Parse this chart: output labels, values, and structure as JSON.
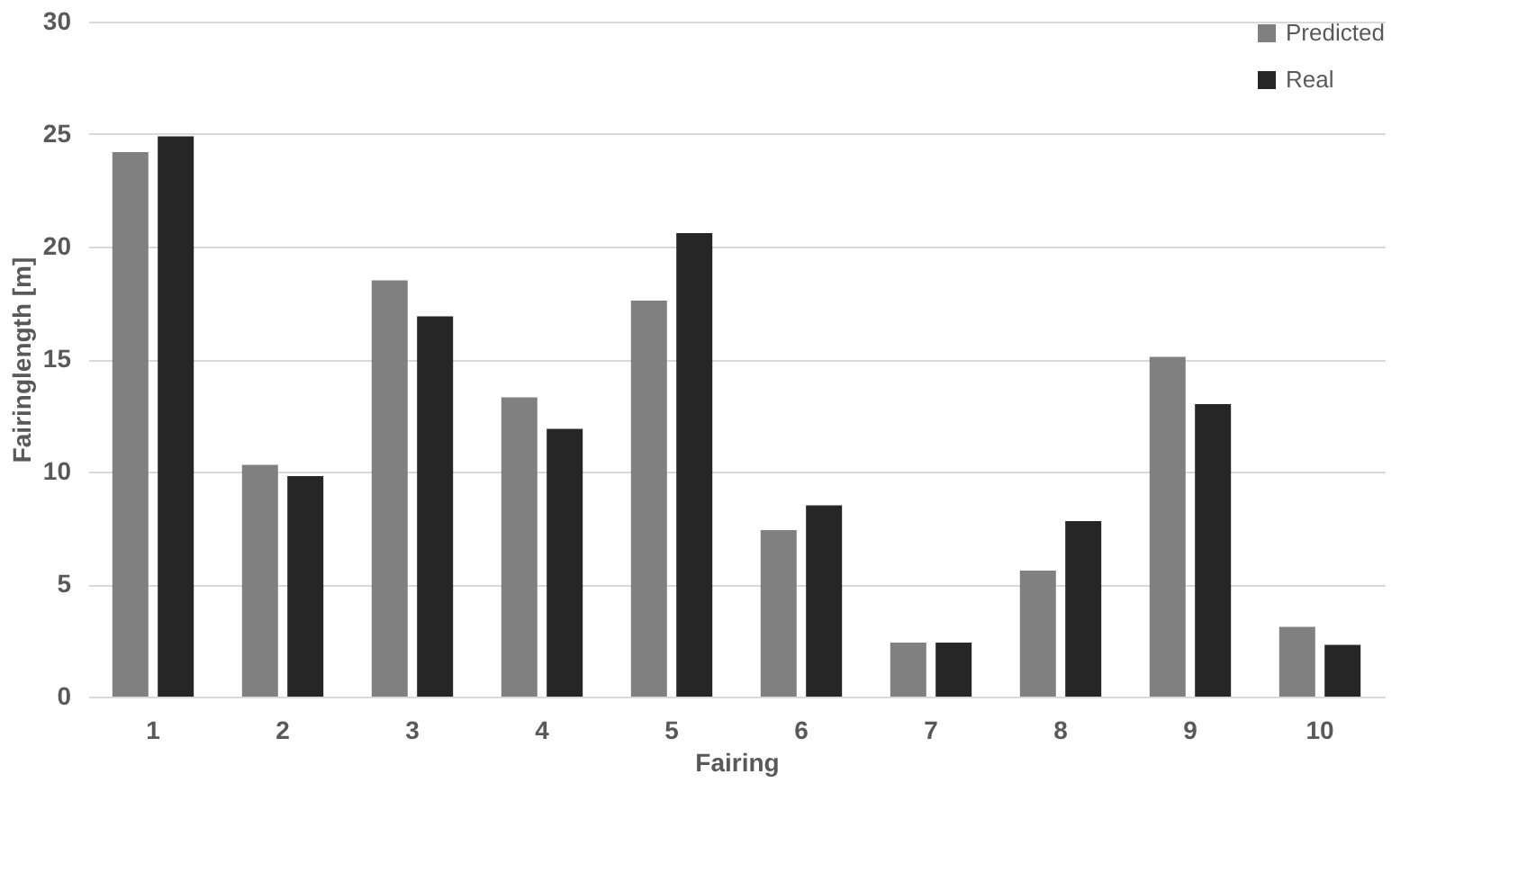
{
  "chart_data": {
    "type": "bar",
    "xlabel": "Fairing",
    "ylabel": "Fairinglength [m]",
    "categories": [
      "1",
      "2",
      "3",
      "4",
      "5",
      "6",
      "7",
      "8",
      "9",
      "10"
    ],
    "series": [
      {
        "name": "Predicted",
        "color": "#808080",
        "values": [
          24.2,
          10.3,
          18.5,
          13.3,
          17.6,
          7.4,
          2.4,
          5.6,
          15.1,
          3.1
        ]
      },
      {
        "name": "Real",
        "color": "#262626",
        "values": [
          24.9,
          9.8,
          16.9,
          11.9,
          20.6,
          8.5,
          2.4,
          7.8,
          13.0,
          2.3
        ]
      }
    ],
    "ylim": [
      0,
      30
    ],
    "yticks": [
      0,
      5,
      10,
      15,
      20,
      25,
      30
    ],
    "grid": "y",
    "legend": "top right"
  }
}
